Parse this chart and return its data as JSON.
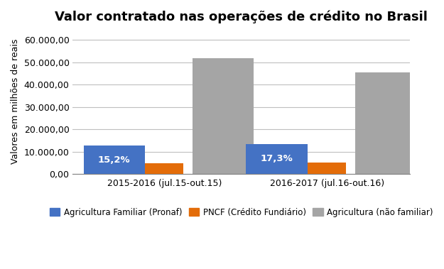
{
  "title": "Valor contratado nas operações de crédito no Brasil",
  "ylabel": "Valores em milhões de reais",
  "categories": [
    "2015-2016 (jul.15-out.15)",
    "2016-2017 (jul.16-out.16)"
  ],
  "series": {
    "Agricultura Familiar (Pronaf)": [
      12800,
      13500
    ],
    "PNCF (Crédito Fundiário)": [
      4800,
      5200
    ],
    "Agricultura (não familiar)": [
      52000,
      45500
    ]
  },
  "bar_colors": {
    "Agricultura Familiar (Pronaf)": "#4472C4",
    "PNCF (Crédito Fundiário)": "#C0504D",
    "Agricultura (não familiar)": "#A5A5A5"
  },
  "bar_labels": [
    "15,2%",
    "17,3%"
  ],
  "ylim": [
    0,
    65000
  ],
  "yticks": [
    0,
    10000,
    20000,
    30000,
    40000,
    50000,
    60000
  ],
  "ytick_labels": [
    "0,00",
    "10.000,00",
    "20.000,00",
    "30.000,00",
    "40.000,00",
    "50.000,00",
    "60.000,00"
  ],
  "background_color": "#FFFFFF",
  "grid_color": "#BFBFBF",
  "title_fontsize": 13,
  "label_fontsize": 9,
  "tick_fontsize": 9,
  "legend_fontsize": 8.5,
  "pncf_color": "#E36C09",
  "pncf_values": [
    4800,
    5200
  ]
}
